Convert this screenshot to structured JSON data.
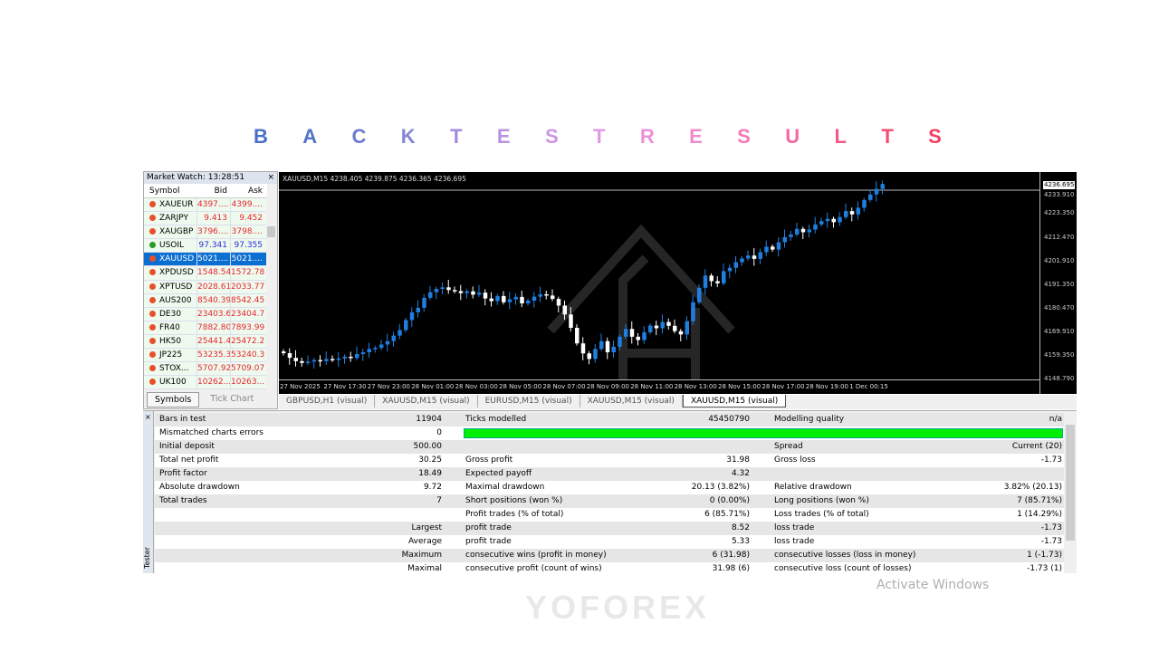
{
  "title": {
    "letters": [
      "B",
      "A",
      "C",
      "K",
      "T",
      "E",
      "S",
      "T",
      "R",
      "E",
      "S",
      "U",
      "L",
      "T",
      "S"
    ],
    "colors": [
      "#4a6fc8",
      "#5074c8",
      "#6a7ad0",
      "#8585d6",
      "#a08be0",
      "#b893e2",
      "#cc96e6",
      "#e09ae6",
      "#ec90d8",
      "#f08ccc",
      "#f47ab8",
      "#f46a9e",
      "#f45a86",
      "#f44c74",
      "#f43e60"
    ]
  },
  "market_watch": {
    "title": "Market Watch: 13:28:51",
    "close": "×",
    "columns": [
      "Symbol",
      "Bid",
      "Ask"
    ],
    "rows": [
      {
        "symbol": "XAUEUR",
        "bid": "4397....",
        "ask": "4399....",
        "dir": "down"
      },
      {
        "symbol": "ZARJPY",
        "bid": "9.413",
        "ask": "9.452",
        "dir": "down"
      },
      {
        "symbol": "XAUGBP",
        "bid": "3796....",
        "ask": "3798....",
        "dir": "down"
      },
      {
        "symbol": "USOIL",
        "bid": "97.341",
        "ask": "97.355",
        "dir": "up"
      },
      {
        "symbol": "XAUUSD",
        "bid": "5021....",
        "ask": "5021....",
        "dir": "down",
        "selected": true
      },
      {
        "symbol": "XPDUSD",
        "bid": "1548.54",
        "ask": "1572.78",
        "dir": "down"
      },
      {
        "symbol": "XPTUSD",
        "bid": "2028.61",
        "ask": "2033.77",
        "dir": "down"
      },
      {
        "symbol": "AUS200",
        "bid": "8540.39",
        "ask": "8542.45",
        "dir": "down"
      },
      {
        "symbol": "DE30",
        "bid": "23403.6",
        "ask": "23404.7",
        "dir": "down"
      },
      {
        "symbol": "FR40",
        "bid": "7882.80",
        "ask": "7893.99",
        "dir": "down"
      },
      {
        "symbol": "HK50",
        "bid": "25441.4",
        "ask": "25472.2",
        "dir": "down"
      },
      {
        "symbol": "JP225",
        "bid": "53235.3",
        "ask": "53240.3",
        "dir": "down"
      },
      {
        "symbol": "STOX...",
        "bid": "5707.92",
        "ask": "5709.07",
        "dir": "down"
      },
      {
        "symbol": "UK100",
        "bid": "10262...",
        "ask": "10263...",
        "dir": "down"
      }
    ],
    "tabs": [
      "Symbols",
      "Tick Chart"
    ]
  },
  "chart": {
    "info": "XAUUSD,M15  4238.405 4239.875 4236.365 4236.695",
    "current_price": "4236.695",
    "price_labels": [
      "4233.910",
      "4223.350",
      "4212.470",
      "4201.910",
      "4191.350",
      "4180.470",
      "4169.910",
      "4159.350",
      "4148.790"
    ],
    "time_labels": [
      "27 Nov 2025",
      "27 Nov 17:30",
      "27 Nov 23:00",
      "28 Nov 01:00",
      "28 Nov 03:00",
      "28 Nov 05:00",
      "28 Nov 07:00",
      "28 Nov 09:00",
      "28 Nov 11:00",
      "28 Nov 13:00",
      "28 Nov 15:00",
      "28 Nov 17:00",
      "28 Nov 19:00",
      "1 Dec 00:15"
    ],
    "bull_color": "#1e7fe0",
    "bear_color": "#ffffff",
    "closes": [
      4160.6,
      4158.5,
      4157.0,
      4156.2,
      4156.8,
      4157.5,
      4157.0,
      4158.0,
      4157.6,
      4158.2,
      4159.0,
      4158.4,
      4160.2,
      4161.0,
      4162.5,
      4163.0,
      4164.5,
      4166.0,
      4168.5,
      4171.0,
      4175.5,
      4179.0,
      4181.0,
      4185.5,
      4188.0,
      4189.5,
      4190.2,
      4189.0,
      4188.5,
      4187.6,
      4188.4,
      4186.9,
      4187.8,
      4185.2,
      4184.0,
      4186.3,
      4183.5,
      4184.8,
      4185.9,
      4183.0,
      4184.2,
      4186.0,
      4187.1,
      4186.5,
      4185.0,
      4182.0,
      4178.0,
      4172.0,
      4165.0,
      4160.5,
      4158.0,
      4162.5,
      4166.0,
      4161.0,
      4163.5,
      4168.0,
      4171.5,
      4168.0,
      4166.5,
      4170.0,
      4173.0,
      4171.8,
      4174.6,
      4172.9,
      4170.5,
      4169.0,
      4175.0,
      4183.5,
      4190.0,
      4195.5,
      4193.0,
      4192.0,
      4197.5,
      4199.0,
      4201.5,
      4203.2,
      4204.5,
      4203.0,
      4206.0,
      4208.5,
      4207.2,
      4210.5,
      4212.8,
      4214.0,
      4216.5,
      4215.0,
      4216.2,
      4218.5,
      4220.0,
      4221.0,
      4219.5,
      4221.8,
      4224.5,
      4223.0,
      4226.0,
      4229.5,
      4232.0,
      4234.5,
      4236.7
    ],
    "tabs": [
      "GBPUSD,H1 (visual)",
      "XAUUSD,M15 (visual)",
      "EURUSD,M15 (visual)",
      "XAUUSD,M15 (visual)",
      "XAUUSD,M15 (visual)"
    ]
  },
  "results": {
    "rows": [
      [
        "Bars in test",
        "11904",
        "Ticks modelled",
        "45450790",
        "Modelling quality",
        "n/a"
      ],
      [
        "Mismatched charts errors",
        "0",
        "",
        "",
        "",
        ""
      ],
      [
        "Initial deposit",
        "500.00",
        "",
        "",
        "Spread",
        "Current (20)"
      ],
      [
        "Total net profit",
        "30.25",
        "Gross profit",
        "31.98",
        "Gross loss",
        "-1.73"
      ],
      [
        "Profit factor",
        "18.49",
        "Expected payoff",
        "4.32",
        "",
        ""
      ],
      [
        "Absolute drawdown",
        "9.72",
        "Maximal drawdown",
        "20.13 (3.82%)",
        "Relative drawdown",
        "3.82% (20.13)"
      ],
      [
        "Total trades",
        "7",
        "Short positions (won %)",
        "0 (0.00%)",
        "Long positions (won %)",
        "7 (85.71%)"
      ],
      [
        "",
        "",
        "Profit trades (% of total)",
        "6 (85.71%)",
        "Loss trades (% of total)",
        "1 (14.29%)"
      ],
      [
        "",
        "Largest",
        "profit trade",
        "8.52",
        "loss trade",
        "-1.73"
      ],
      [
        "",
        "Average",
        "profit trade",
        "5.33",
        "loss trade",
        "-1.73"
      ],
      [
        "",
        "Maximum",
        "consecutive wins (profit in money)",
        "6 (31.98)",
        "consecutive losses (loss in money)",
        "1 (-1.73)"
      ],
      [
        "",
        "Maximal",
        "consecutive profit (count of wins)",
        "31.98 (6)",
        "consecutive loss (count of losses)",
        "-1.73 (1)"
      ]
    ],
    "quality_bar_color": "#00ee00",
    "side_label": "Tester"
  },
  "watermark": "YOFOREX",
  "os_overlay": "Activate Windows"
}
